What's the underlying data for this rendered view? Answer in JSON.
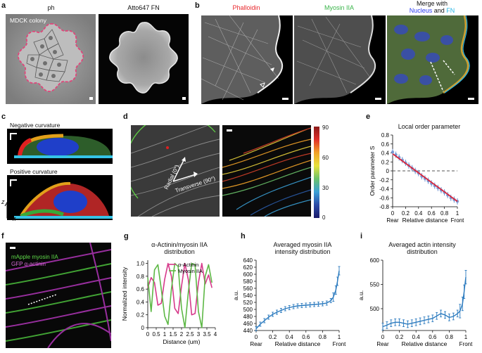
{
  "panels": {
    "a": {
      "letter": "a",
      "titles": [
        "ph",
        "Atto647 FN"
      ],
      "annotation": "MDCK colony"
    },
    "b": {
      "letter": "b",
      "title_phalloidin": "Phalloidin",
      "title_myosin": "Myosin IIA",
      "merge_line1": "Merge with",
      "merge_nucleus": "Nucleus",
      "merge_and": " and ",
      "merge_fn": "FN",
      "colors": {
        "phalloidin": "#e8262b",
        "myosin": "#3ab54a",
        "nucleus": "#2b3cf2",
        "fn": "#27b5e6"
      }
    },
    "c": {
      "letter": "c",
      "neg_label": "Negative curvature",
      "pos_label": "Positive curvature",
      "axis_z": "z",
      "axis_x": "x"
    },
    "d": {
      "letter": "d",
      "radial_label": "Radial (0°)",
      "transverse_label": "Transverse (90°)",
      "colorbar_ticks": [
        "90",
        "60",
        "30",
        "0"
      ]
    },
    "e": {
      "letter": "e",
      "title": "Local order parameter",
      "ylabel": "Order parameter S",
      "xlabel": "Relative distance",
      "yticks": [
        "0.8",
        "0.6",
        "0.4",
        "0.2",
        "0",
        "-0.2",
        "-0.4",
        "-0.6",
        "-0.8"
      ],
      "xticks": [
        "0",
        "0.2",
        "0.4",
        "0.6",
        "0.8",
        "1"
      ],
      "xend_left": "Rear",
      "xend_right": "Front"
    },
    "f": {
      "letter": "f",
      "label_line1": "mApple myosin IIA",
      "label_line2": "GFP α-actinin"
    },
    "g": {
      "letter": "g",
      "title_line1": "α-Actinin/myosin IIA",
      "title_line2": "distribution",
      "ylabel": "Normalized intensity",
      "xlabel": "Distance (um)",
      "yticks": [
        "1.0",
        "0.8",
        "0.6",
        "0.4",
        "0.2",
        "0"
      ],
      "xticks": [
        "0",
        "0.5",
        "1",
        "1.5",
        "2",
        "2.5",
        "3",
        "3.5",
        "4"
      ],
      "legend": [
        "α-Actinin",
        "Myosin IIA"
      ],
      "colors": {
        "actinin": "#d6398a",
        "myosin": "#5db845"
      }
    },
    "h": {
      "letter": "h",
      "title_line1": "Averaged myosin IIA",
      "title_line2": "intensity distribution",
      "ylabel": "a.u.",
      "xlabel": "Relative distance",
      "yticks": [
        "640",
        "620",
        "600",
        "580",
        "560",
        "540",
        "520",
        "500",
        "480",
        "460",
        "440"
      ],
      "xticks": [
        "0",
        "0.2",
        "0.4",
        "0.6",
        "0.8",
        "1"
      ],
      "xend_left": "Rear",
      "xend_right": "Front"
    },
    "i": {
      "letter": "i",
      "title_line1": "Averaged actin intensity",
      "title_line2": "distribution",
      "ylabel": "a.u.",
      "xlabel": "Relative distance",
      "yticks": [
        "600",
        "550",
        "500"
      ],
      "xticks": [
        "0",
        "0.2",
        "0.4",
        "0.6",
        "0.8",
        "1"
      ],
      "xend_left": "Rear",
      "xend_right": "Front"
    }
  },
  "chart_data": [
    {
      "panel": "e",
      "type": "scatter",
      "title": "Local order parameter",
      "xlabel": "Relative distance",
      "ylabel": "Order parameter S",
      "xlim": [
        0,
        1
      ],
      "ylim": [
        -0.8,
        0.8
      ],
      "x": [
        0.0,
        0.05,
        0.1,
        0.15,
        0.2,
        0.25,
        0.3,
        0.35,
        0.4,
        0.45,
        0.5,
        0.55,
        0.6,
        0.65,
        0.7,
        0.75,
        0.8,
        0.85,
        0.9,
        0.95,
        1.0
      ],
      "series": [
        {
          "values": [
            0.42,
            0.36,
            0.3,
            0.24,
            0.18,
            0.12,
            0.06,
            0.0,
            -0.05,
            -0.12,
            -0.17,
            -0.22,
            -0.28,
            -0.33,
            -0.38,
            -0.43,
            -0.48,
            -0.54,
            -0.6,
            -0.64,
            -0.68
          ]
        }
      ],
      "fit": {
        "x": [
          0.0,
          1.0
        ],
        "y": [
          0.38,
          -0.68
        ]
      },
      "reference_line": 0,
      "colors": {
        "points": "#6b8fd0",
        "fit": "#d9263a",
        "reference": "#555555"
      }
    },
    {
      "panel": "g",
      "type": "line",
      "title": "α-Actinin/myosin IIA distribution",
      "xlabel": "Distance (um)",
      "ylabel": "Normalized intensity",
      "xlim": [
        0,
        4
      ],
      "ylim": [
        0,
        1.05
      ],
      "x": [
        0.0,
        0.2,
        0.4,
        0.6,
        0.8,
        1.0,
        1.2,
        1.4,
        1.6,
        1.8,
        2.0,
        2.2,
        2.4,
        2.6,
        2.8,
        3.0,
        3.2,
        3.4,
        3.6,
        3.8
      ],
      "series": [
        {
          "name": "α-Actinin",
          "values": [
            0.62,
            0.78,
            0.7,
            0.35,
            0.38,
            0.75,
            1.0,
            0.8,
            0.3,
            0.22,
            0.65,
            1.0,
            0.75,
            0.2,
            0.22,
            0.7,
            1.0,
            0.68,
            0.82,
            0.62
          ]
        },
        {
          "name": "Myosin IIA",
          "values": [
            0.78,
            0.25,
            0.9,
            0.98,
            0.6,
            0.18,
            0.05,
            0.6,
            1.0,
            0.95,
            0.3,
            0.0,
            0.55,
            1.0,
            0.98,
            0.25,
            0.0,
            0.8,
            0.98,
            0.7
          ]
        }
      ]
    },
    {
      "panel": "h",
      "type": "line",
      "title": "Averaged myosin IIA intensity distribution",
      "xlabel": "Relative distance",
      "ylabel": "a.u.",
      "xlim": [
        0,
        1
      ],
      "ylim": [
        440,
        640
      ],
      "x": [
        0.0,
        0.05,
        0.1,
        0.15,
        0.2,
        0.25,
        0.3,
        0.35,
        0.4,
        0.45,
        0.5,
        0.55,
        0.6,
        0.65,
        0.7,
        0.75,
        0.8,
        0.85,
        0.9,
        0.93,
        0.96,
        0.98,
        1.0
      ],
      "series": [
        {
          "name": "",
          "values": [
            445,
            458,
            468,
            478,
            486,
            492,
            497,
            502,
            505,
            508,
            510,
            511,
            512,
            513,
            514,
            515,
            516,
            518,
            525,
            535,
            555,
            580,
            610
          ]
        }
      ],
      "error_bar": 6
    },
    {
      "panel": "i",
      "type": "line",
      "title": "Averaged actin intensity distribution",
      "xlabel": "Relative distance",
      "ylabel": "a.u.",
      "xlim": [
        0,
        1
      ],
      "ylim": [
        455,
        600
      ],
      "x": [
        0.0,
        0.05,
        0.1,
        0.15,
        0.2,
        0.25,
        0.3,
        0.35,
        0.4,
        0.45,
        0.5,
        0.55,
        0.6,
        0.65,
        0.7,
        0.75,
        0.8,
        0.85,
        0.9,
        0.93,
        0.96,
        0.98,
        1.0
      ],
      "series": [
        {
          "name": "",
          "values": [
            463,
            466,
            470,
            472,
            472,
            470,
            468,
            470,
            472,
            474,
            476,
            478,
            480,
            485,
            490,
            487,
            482,
            484,
            490,
            495,
            510,
            535,
            565
          ]
        }
      ],
      "error_bar": 7
    }
  ]
}
